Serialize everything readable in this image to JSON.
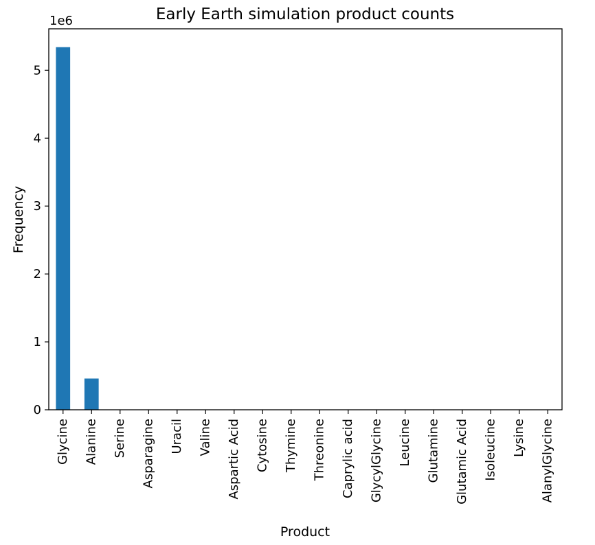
{
  "chart_data": {
    "type": "bar",
    "title": "Early Earth simulation product counts",
    "xlabel": "Product",
    "ylabel": "Frequency",
    "offset_label": "1e6",
    "scale": 1000000,
    "categories": [
      "Glycine",
      "Alanine",
      "Serine",
      "Asparagine",
      "Uracil",
      "Valine",
      "Aspartic Acid",
      "Cytosine",
      "Thymine",
      "Threonine",
      "Caprylic acid",
      "GlycylGlycine",
      "Leucine",
      "Glutamine",
      "Glutamic Acid",
      "Isoleucine",
      "Lysine",
      "AlanylGlycine"
    ],
    "values": [
      5340000,
      460000,
      0,
      0,
      0,
      0,
      0,
      0,
      0,
      0,
      0,
      0,
      0,
      0,
      0,
      0,
      0,
      0
    ],
    "yticks": [
      0,
      1,
      2,
      3,
      4,
      5
    ],
    "ylim": [
      0,
      5610000
    ],
    "bar_color": "#1f77b4",
    "grid": false,
    "legend": false
  }
}
